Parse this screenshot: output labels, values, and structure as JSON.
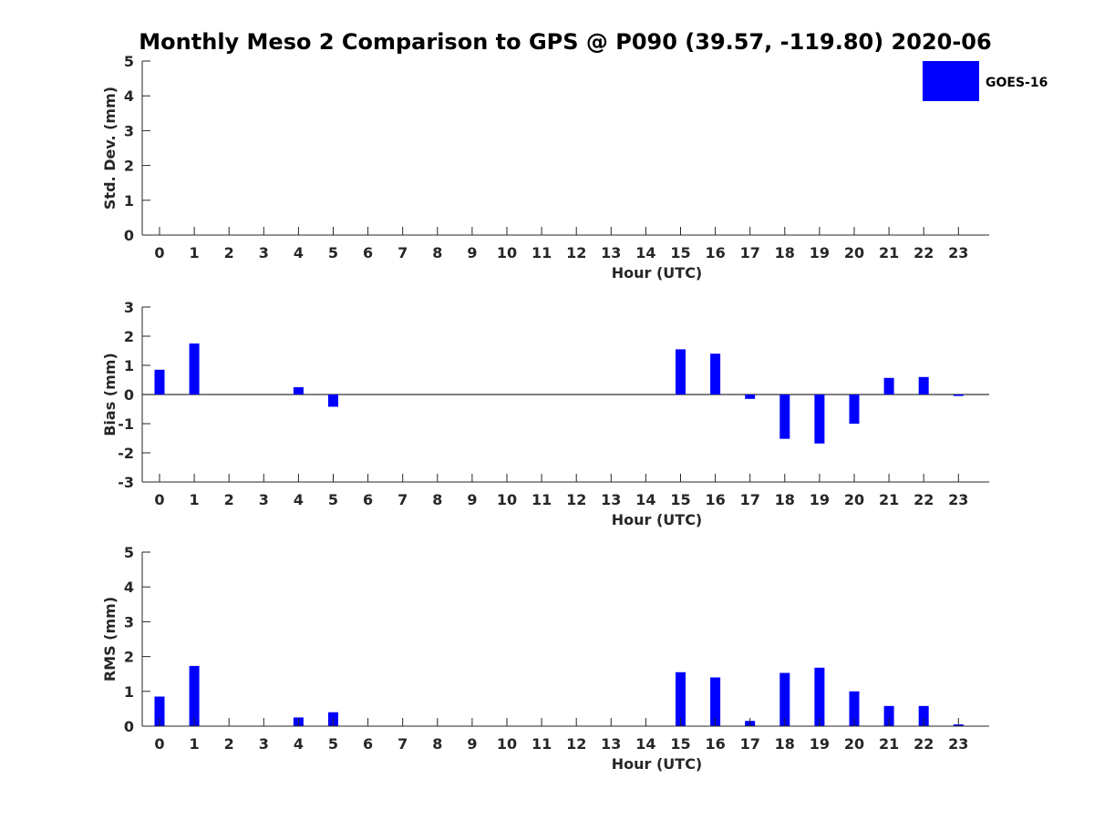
{
  "title": "Monthly Meso 2 Comparison to GPS @ P090 (39.57, -119.80) 2020-06",
  "legend": {
    "label": "GOES-16",
    "color": "#0000ff",
    "placement": "top-right"
  },
  "chart_data": [
    {
      "type": "bar",
      "ylabel": "Std. Dev. (mm)",
      "xlabel": "Hour (UTC)",
      "ylim": [
        0,
        5
      ],
      "yticks": [
        "0",
        "1",
        "2",
        "3",
        "4",
        "5"
      ],
      "categories": [
        "0",
        "1",
        "2",
        "3",
        "4",
        "5",
        "6",
        "7",
        "8",
        "9",
        "10",
        "11",
        "12",
        "13",
        "14",
        "15",
        "16",
        "17",
        "18",
        "19",
        "20",
        "21",
        "22",
        "23"
      ],
      "series": [
        {
          "name": "GOES-16",
          "values": [
            0,
            0,
            0,
            0,
            0,
            0,
            0,
            0,
            0,
            0,
            0,
            0,
            0,
            0,
            0,
            0,
            0,
            0,
            0,
            0,
            0,
            0,
            0,
            0
          ]
        }
      ],
      "grid": false
    },
    {
      "type": "bar",
      "ylabel": "Bias (mm)",
      "xlabel": "Hour (UTC)",
      "ylim": [
        -3,
        3
      ],
      "yticks": [
        "-3",
        "-2",
        "-1",
        "0",
        "1",
        "2",
        "3"
      ],
      "categories": [
        "0",
        "1",
        "2",
        "3",
        "4",
        "5",
        "6",
        "7",
        "8",
        "9",
        "10",
        "11",
        "12",
        "13",
        "14",
        "15",
        "16",
        "17",
        "18",
        "19",
        "20",
        "21",
        "22",
        "23"
      ],
      "series": [
        {
          "name": "GOES-16",
          "values": [
            0.85,
            1.75,
            0,
            0,
            0.25,
            -0.42,
            0,
            0,
            0,
            0,
            0,
            0,
            0,
            0,
            0,
            1.55,
            1.4,
            -0.15,
            -1.52,
            -1.68,
            -1.0,
            0.57,
            0.6,
            -0.05
          ]
        }
      ],
      "zero_line": true,
      "grid": false
    },
    {
      "type": "bar",
      "ylabel": "RMS (mm)",
      "xlabel": "Hour (UTC)",
      "ylim": [
        0,
        5
      ],
      "yticks": [
        "0",
        "1",
        "2",
        "3",
        "4",
        "5"
      ],
      "categories": [
        "0",
        "1",
        "2",
        "3",
        "4",
        "5",
        "6",
        "7",
        "8",
        "9",
        "10",
        "11",
        "12",
        "13",
        "14",
        "15",
        "16",
        "17",
        "18",
        "19",
        "20",
        "21",
        "22",
        "23"
      ],
      "series": [
        {
          "name": "GOES-16",
          "values": [
            0.85,
            1.73,
            0,
            0,
            0.25,
            0.4,
            0,
            0,
            0,
            0,
            0,
            0,
            0,
            0,
            0,
            1.55,
            1.4,
            0.15,
            1.53,
            1.68,
            1.0,
            0.58,
            0.58,
            0.05
          ]
        }
      ],
      "grid": false
    }
  ]
}
